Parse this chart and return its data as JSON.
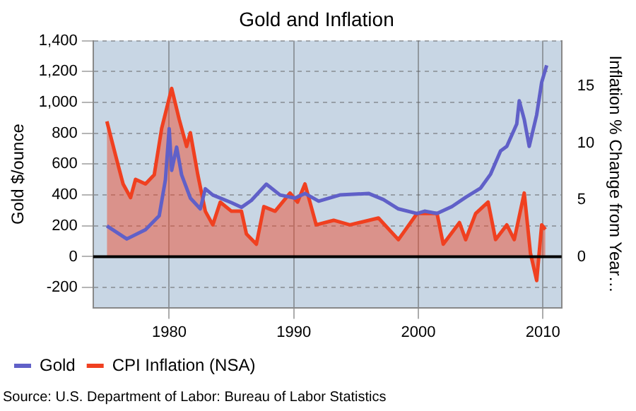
{
  "chart_data": {
    "type": "line",
    "title": "Gold and Inflation",
    "ylabel": "Gold $/ounce",
    "y2label": "Inflation % Change from Year…",
    "annotations": [
      "Source: U.S. Department of Labor: Bureau of Labor Statistics"
    ],
    "xlim": [
      1973.9,
      2011.5
    ],
    "xticks": [
      1980,
      1990,
      2000,
      2010
    ],
    "ylim": [
      -330,
      1400
    ],
    "yticks": [
      -200,
      0,
      200,
      400,
      600,
      800,
      {
        "value": 1000,
        "label": "1,000"
      },
      {
        "value": 1200,
        "label": "1,200"
      },
      {
        "value": 1400,
        "label": "1,400"
      }
    ],
    "y2lim": [
      -4.48,
      19
    ],
    "y2ticks": [
      0,
      5,
      10,
      15
    ],
    "grid": true,
    "legend": "bottom",
    "marker": "none",
    "ref_lines": [
      {
        "axis": "y",
        "value": 0,
        "color": "#000000"
      }
    ],
    "series": [
      {
        "name": "Gold",
        "type": "line",
        "color": "#6060c8",
        "x": [
          1975.0,
          1976.6,
          1978.1,
          1979.2,
          1979.7,
          1980.0,
          1980.2,
          1980.6,
          1981.0,
          1981.7,
          1982.5,
          1982.9,
          1983.5,
          1985.0,
          1985.8,
          1986.6,
          1987.8,
          1988.9,
          1990.1,
          1990.9,
          1992.0,
          1993.7,
          1996.0,
          1997.2,
          1998.4,
          1999.9,
          2000.5,
          2001.5,
          2002.7,
          2003.8,
          2005.0,
          2005.8,
          2006.6,
          2007.1,
          2007.9,
          2008.1,
          2008.5,
          2008.9,
          2009.5,
          2009.9,
          2010.3
        ],
        "values": [
          200,
          115,
          175,
          265,
          500,
          830,
          560,
          710,
          530,
          380,
          310,
          440,
          400,
          350,
          320,
          365,
          470,
          400,
          380,
          410,
          360,
          400,
          410,
          370,
          310,
          280,
          295,
          280,
          325,
          385,
          445,
          535,
          685,
          715,
          860,
          1010,
          890,
          715,
          920,
          1130,
          1240
        ]
      },
      {
        "name": "CPI Inflation (NSA)",
        "type": "area",
        "axis": "y2",
        "color": "#f04020",
        "x": [
          1975.0,
          1975.7,
          1976.3,
          1976.9,
          1977.3,
          1978.1,
          1978.8,
          1979.4,
          1980.2,
          1980.8,
          1981.4,
          1981.7,
          1982.3,
          1982.9,
          1983.5,
          1984.1,
          1985.0,
          1985.8,
          1986.2,
          1987.0,
          1987.6,
          1988.5,
          1989.7,
          1990.3,
          1990.9,
          1991.4,
          1991.8,
          1993.2,
          1994.5,
          1996.8,
          1998.4,
          1999.9,
          2001.5,
          2002.0,
          2003.3,
          2003.8,
          2004.6,
          2005.6,
          2006.2,
          2007.1,
          2007.7,
          2008.5,
          2009.0,
          2009.5,
          2009.9,
          2010.2
        ],
        "values": [
          11.9,
          8.9,
          6.4,
          5.2,
          6.8,
          6.4,
          7.2,
          11.3,
          14.8,
          12.1,
          9.7,
          10.9,
          7.2,
          4.0,
          2.8,
          4.8,
          4.0,
          4.0,
          2.0,
          1.1,
          4.4,
          4.0,
          5.6,
          4.8,
          6.4,
          4.4,
          2.8,
          3.2,
          2.8,
          3.4,
          1.5,
          3.8,
          3.8,
          1.1,
          3.0,
          1.5,
          3.8,
          4.8,
          1.5,
          2.8,
          1.5,
          5.6,
          0.3,
          -2.1,
          2.8,
          2.4
        ]
      }
    ]
  }
}
